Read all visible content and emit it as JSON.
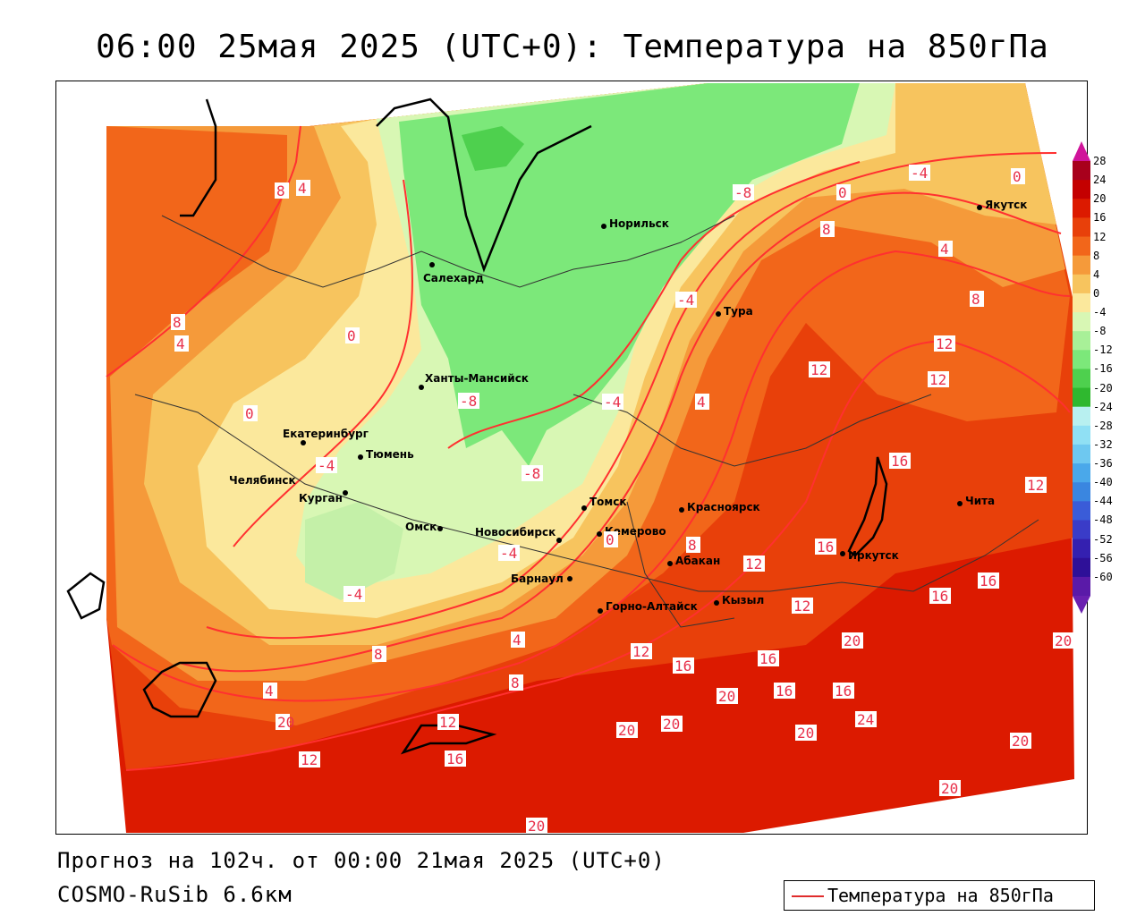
{
  "title": "06:00 25мая 2025 (UTC+0): Температура на 850гПа",
  "footer": {
    "forecast": "Прогноз на 102ч. от 00:00 21мая 2025 (UTC+0)",
    "model": "COSMO-RuSib 6.6км"
  },
  "legend": {
    "label": "Температура на 850гПа",
    "line_color": "#e02c2c"
  },
  "colorbar": {
    "labels": [
      "28",
      "24",
      "20",
      "16",
      "12",
      "8",
      "4",
      "0",
      "-4",
      "-8",
      "-12",
      "-16",
      "-20",
      "-24",
      "-28",
      "-32",
      "-36",
      "-40",
      "-44",
      "-48",
      "-52",
      "-56",
      "-60"
    ],
    "colors": [
      "#a8001c",
      "#c40000",
      "#dc1a00",
      "#e8400a",
      "#f2661a",
      "#f59a3a",
      "#f7c45e",
      "#fbe89c",
      "#d8f7b4",
      "#a8f098",
      "#7ce87a",
      "#4ed04e",
      "#2fb82f",
      "#b8f0f0",
      "#90e0f4",
      "#6ec8f0",
      "#4aa8ea",
      "#3a86e0",
      "#3a5cd8",
      "#3a3cc8",
      "#3420b0",
      "#2e1098",
      "#5a1aa8"
    ],
    "top_arrow_color": "#d0149a",
    "bottom_arrow_color": "#6a20b0"
  },
  "cities": [
    {
      "name": "Якутск"
    },
    {
      "name": "Норильск"
    },
    {
      "name": "Салехард"
    },
    {
      "name": "Тура"
    },
    {
      "name": "Ханты-Мансийск"
    },
    {
      "name": "Екатеринбург"
    },
    {
      "name": "Тюмень"
    },
    {
      "name": "Челябинск"
    },
    {
      "name": "Курган"
    },
    {
      "name": "Омск"
    },
    {
      "name": "Новосибирск"
    },
    {
      "name": "Томск"
    },
    {
      "name": "Кемерово"
    },
    {
      "name": "Красноярск"
    },
    {
      "name": "Абакан"
    },
    {
      "name": "Барнаул"
    },
    {
      "name": "Горно-Алтайск"
    },
    {
      "name": "Кызыл"
    },
    {
      "name": "Иркутск"
    },
    {
      "name": "Чита"
    }
  ],
  "contour_labels": [
    "-4",
    "0",
    "8",
    "4",
    "-8",
    "0",
    "8",
    "4",
    "8",
    "-4",
    "8",
    "4",
    "0",
    "12",
    "12",
    "12",
    "-8",
    "-4",
    "4",
    "0",
    "16",
    "-4",
    "-8",
    "-4",
    "16",
    "12",
    "0",
    "8",
    "12",
    "-4",
    "16",
    "16",
    "12",
    "4",
    "12",
    "16",
    "20",
    "8",
    "20",
    "16",
    "16",
    "20",
    "4",
    "20",
    "8",
    "16",
    "12",
    "20",
    "24",
    "12",
    "20",
    "16",
    "20",
    "20",
    "20",
    "20"
  ]
}
